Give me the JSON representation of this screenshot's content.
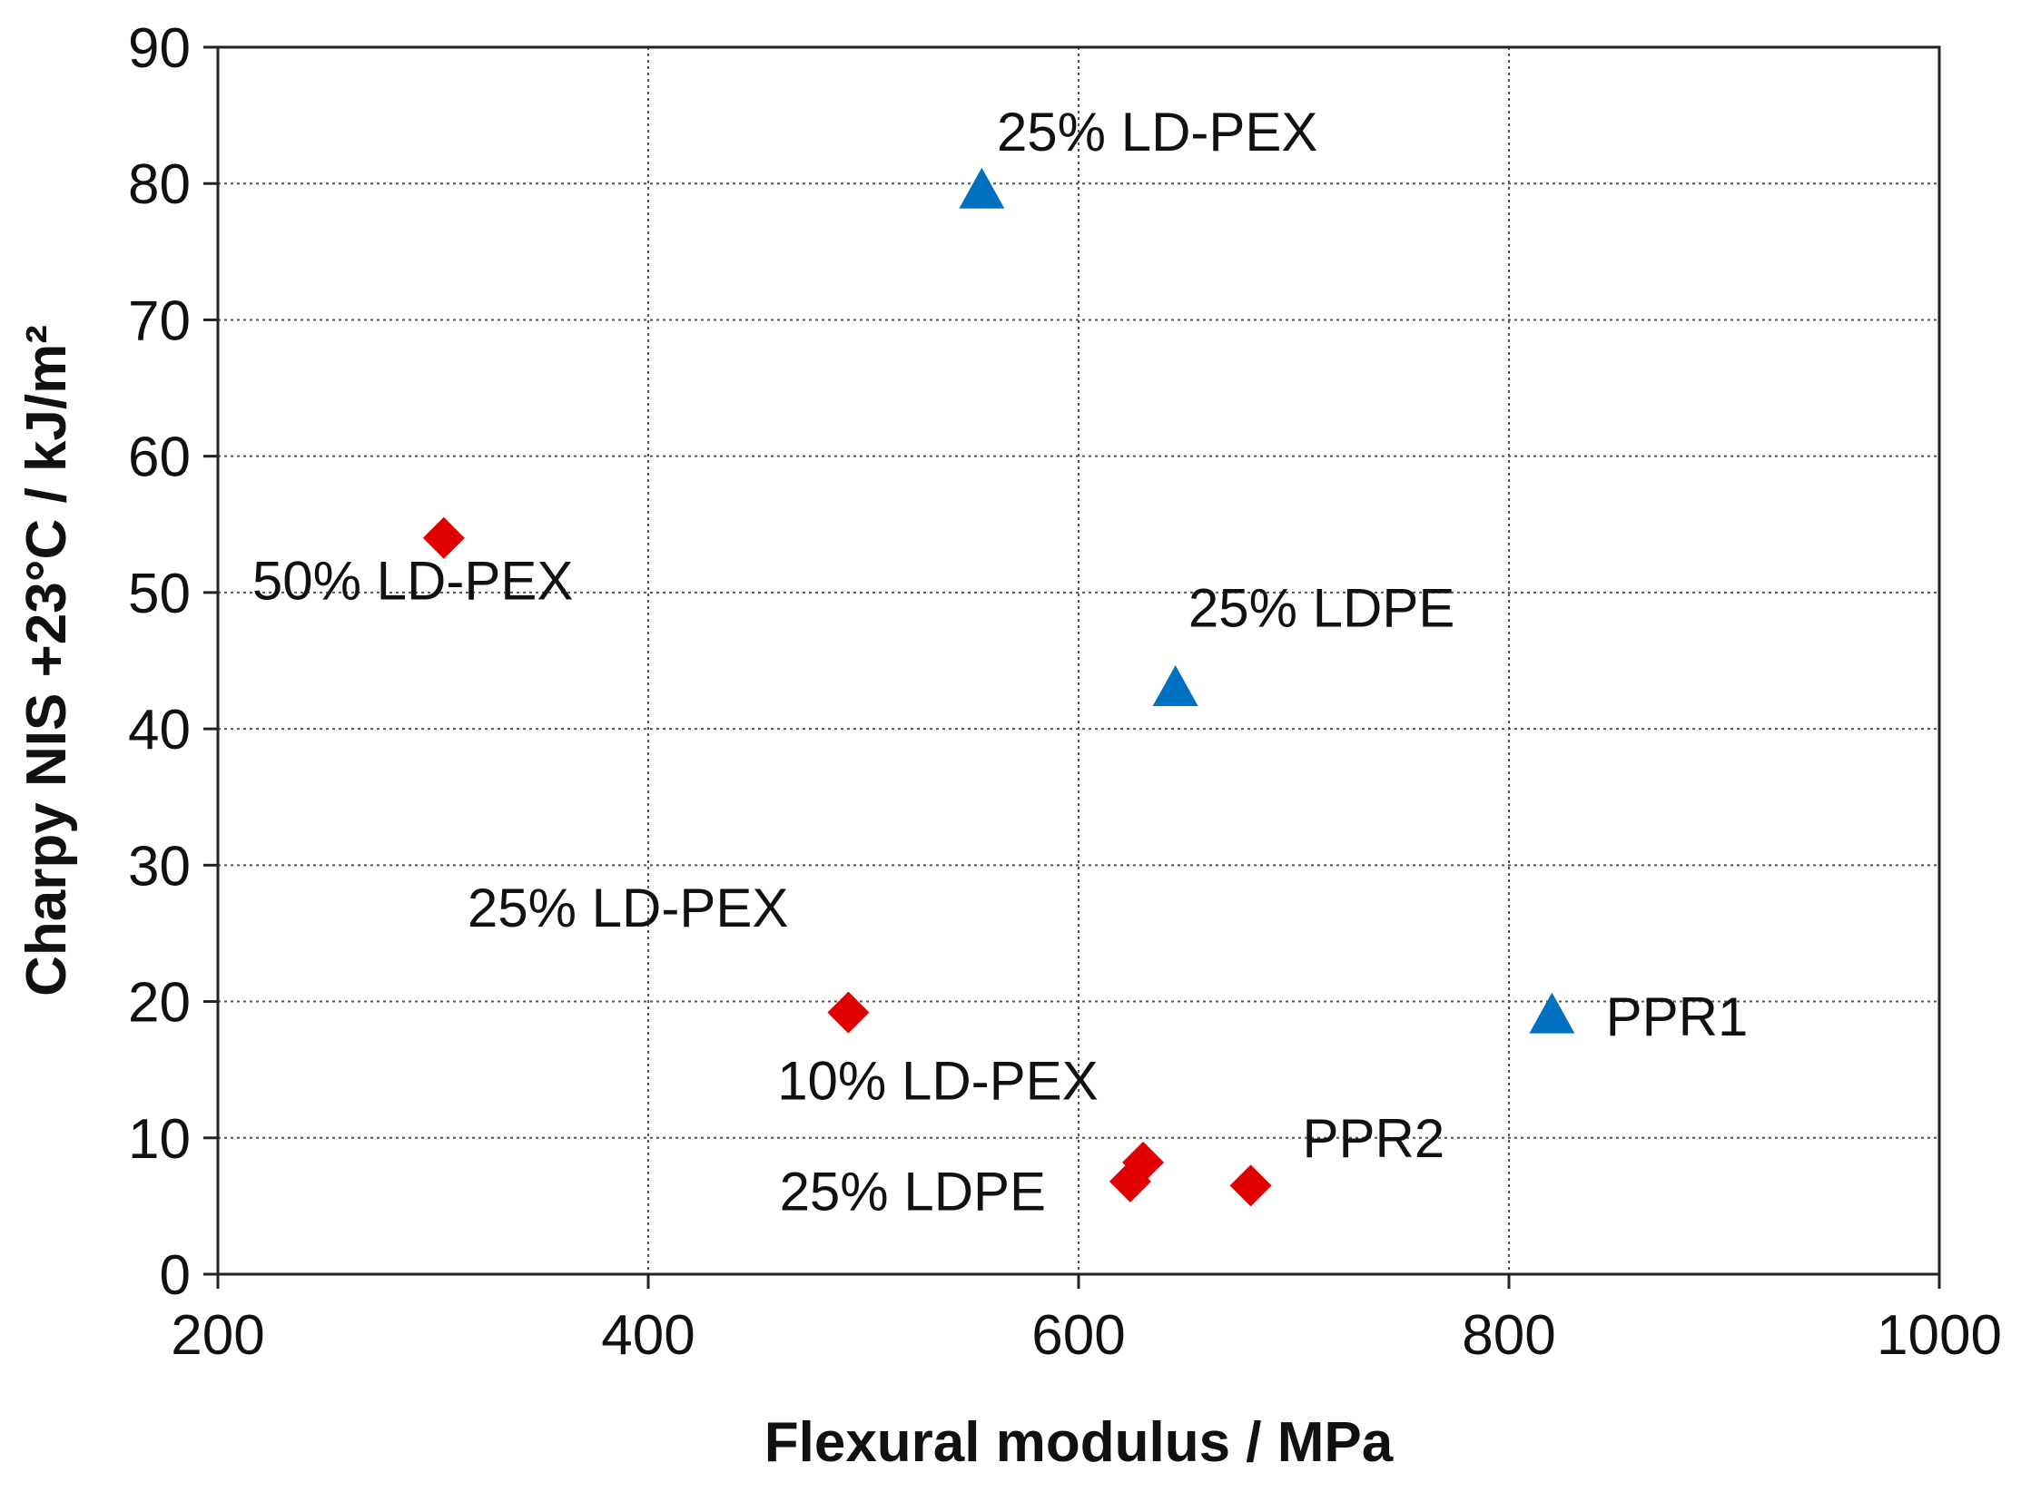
{
  "chart_data": {
    "type": "scatter",
    "title": "",
    "xlabel": "Flexural modulus / MPa",
    "ylabel": "Charpy NIS +23°C / kJ/m²",
    "xlim": [
      200,
      1000
    ],
    "ylim": [
      0,
      90
    ],
    "xticks": [
      200,
      400,
      600,
      800,
      1000
    ],
    "yticks": [
      0,
      10,
      20,
      30,
      40,
      50,
      60,
      70,
      80,
      90
    ],
    "grid": true,
    "series": [
      {
        "name": "triangle series",
        "marker": "triangle",
        "color": "#0070C0",
        "points": [
          {
            "x": 555,
            "y": 79.5
          },
          {
            "x": 645,
            "y": 43
          },
          {
            "x": 820,
            "y": 19
          }
        ]
      },
      {
        "name": "diamond series",
        "marker": "diamond",
        "color": "#E00000",
        "points": [
          {
            "x": 305,
            "y": 54
          },
          {
            "x": 493,
            "y": 19.2
          },
          {
            "x": 630,
            "y": 8.2
          },
          {
            "x": 624,
            "y": 6.8
          },
          {
            "x": 680,
            "y": 6.5
          }
        ]
      }
    ],
    "annotations": [
      {
        "text": "25% LD-PEX",
        "x": 562,
        "y": 82.4
      },
      {
        "text": "25% LDPE",
        "x": 651,
        "y": 47.5
      },
      {
        "text": "PPR1",
        "x": 845,
        "y": 17.5
      },
      {
        "text": "50% LD-PEX",
        "x": 216,
        "y": 49.5
      },
      {
        "text": "25% LD-PEX",
        "x": 316,
        "y": 25.5
      },
      {
        "text": "10% LD-PEX",
        "x": 460,
        "y": 12.8
      },
      {
        "text": "PPR2",
        "x": 704,
        "y": 8.6
      },
      {
        "text": "25% LDPE",
        "x": 461,
        "y": 4.7
      }
    ]
  }
}
